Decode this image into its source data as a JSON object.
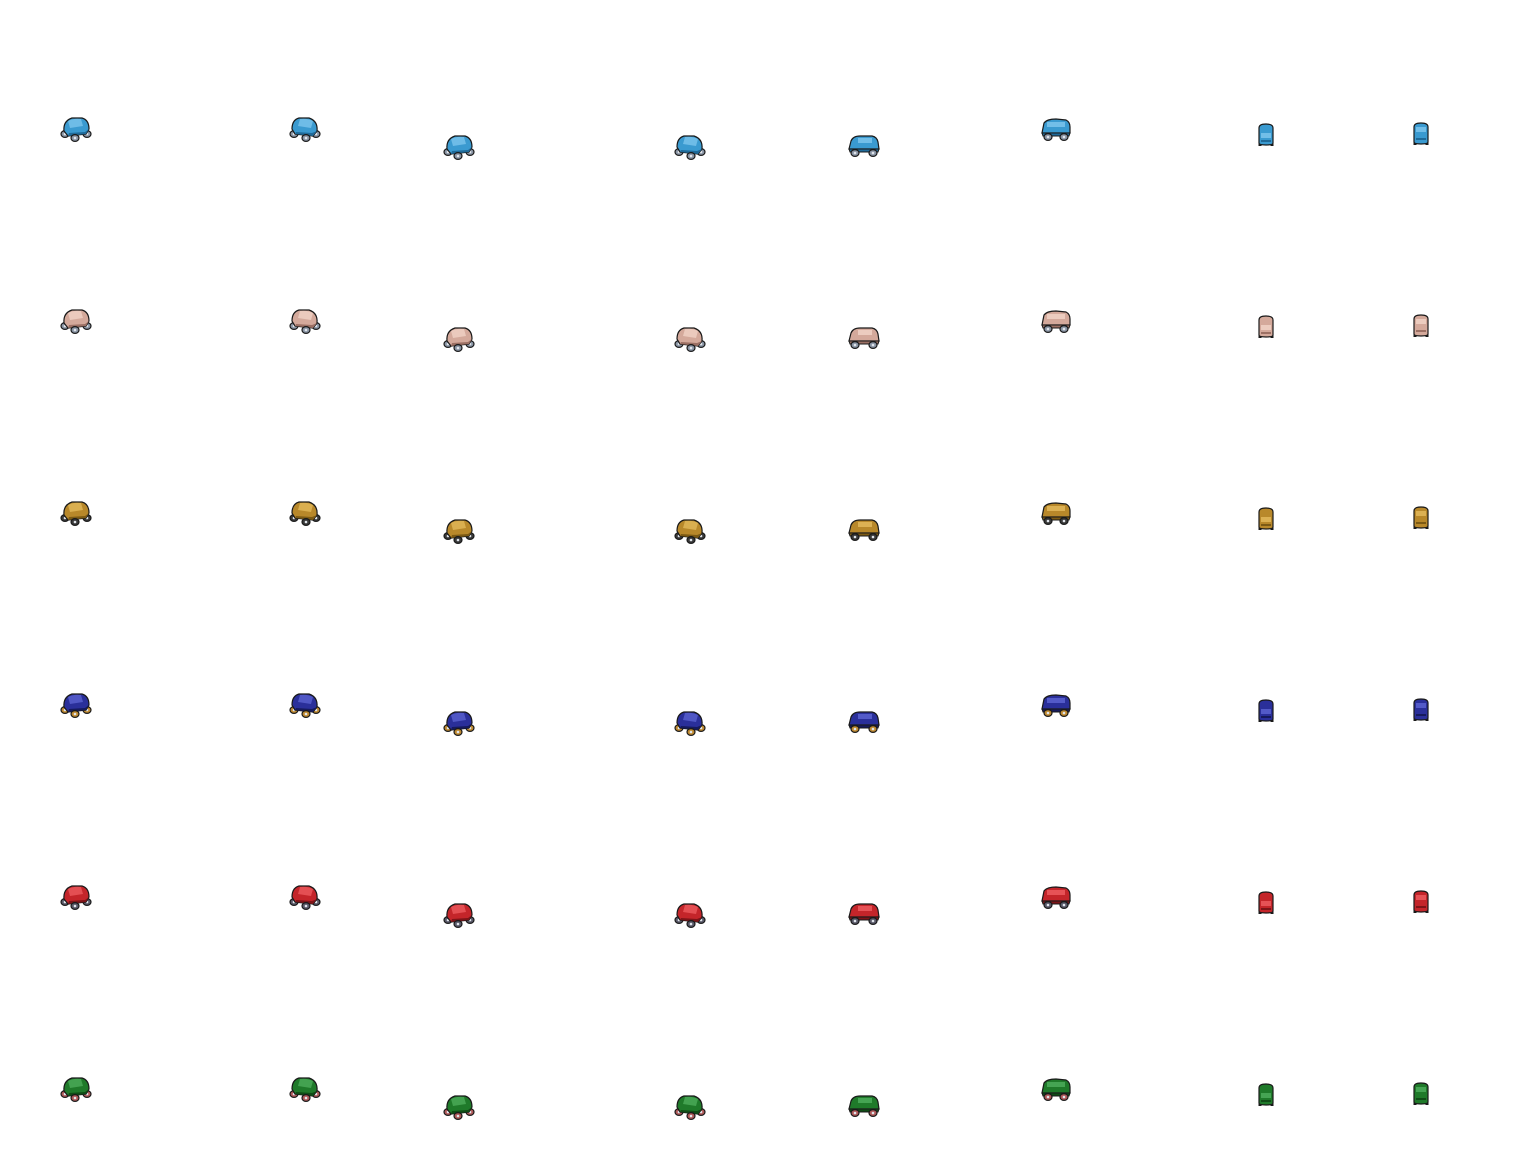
{
  "sheet": {
    "background": "#ffffff",
    "directions": [
      "diagonal-left",
      "diagonal-right",
      "diagonal-front-left",
      "diagonal-front-right",
      "side-right",
      "side-rear",
      "front",
      "back"
    ],
    "variants": [
      {
        "name": "blue",
        "body": "#3a9ad0",
        "shade": "#1f6a99",
        "light": "#7cc4ec",
        "wheel": "#8a95a5"
      },
      {
        "name": "tan",
        "body": "#d4a99b",
        "shade": "#9c7064",
        "light": "#f0d2c6",
        "wheel": "#8a95a5"
      },
      {
        "name": "gold",
        "body": "#b8882a",
        "shade": "#7c5a14",
        "light": "#e2b95a",
        "wheel": "#3a3a3a"
      },
      {
        "name": "navy",
        "body": "#2a2f9a",
        "shade": "#161a5c",
        "light": "#5a62d0",
        "wheel": "#c08a30"
      },
      {
        "name": "red",
        "body": "#c4252a",
        "shade": "#7e1418",
        "light": "#ec5a5e",
        "wheel": "#5a5a6a"
      },
      {
        "name": "green",
        "body": "#1f7a2a",
        "shade": "#0f4c16",
        "light": "#4cac5a",
        "wheel": "#b05a5a"
      }
    ]
  }
}
